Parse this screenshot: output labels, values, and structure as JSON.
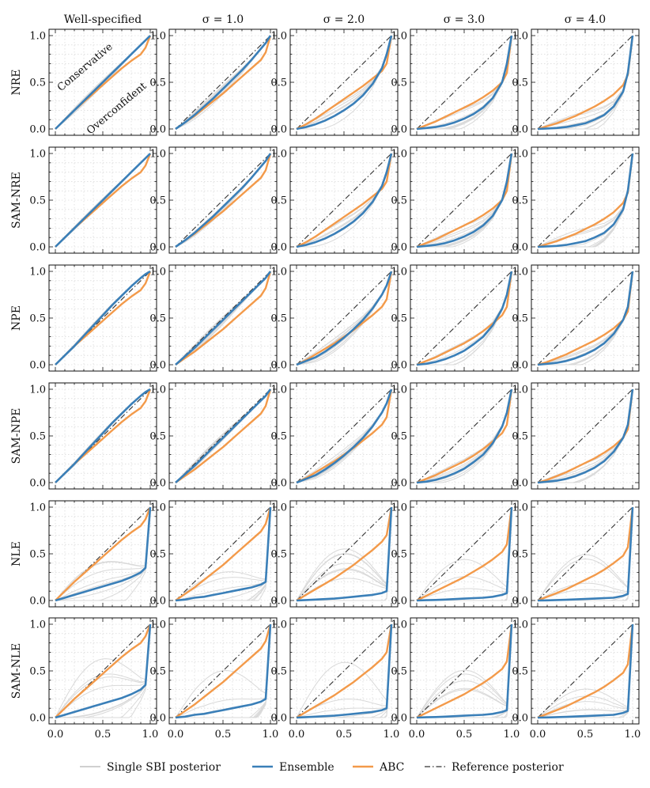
{
  "figure": {
    "col_titles": [
      "Well-specified",
      "σ = 1.0",
      "σ = 2.0",
      "σ = 3.0",
      "σ = 4.0"
    ],
    "row_labels": [
      "NRE",
      "SAM-NRE",
      "NPE",
      "SAM-NPE",
      "NLE",
      "SAM-NLE"
    ],
    "annotations": {
      "upper": "Conservative",
      "lower": "Overconfident"
    },
    "legend": {
      "placement": "bottom-center",
      "items": [
        {
          "label": "Single SBI posterior",
          "color": "#b4b4b4",
          "style": "thin"
        },
        {
          "label": "Ensemble",
          "color": "#3a7fb8",
          "style": "thick"
        },
        {
          "label": "ABC",
          "color": "#f39a4a",
          "style": "thick"
        },
        {
          "label": "Reference posterior",
          "color": "#333333",
          "style": "dashdot"
        }
      ]
    },
    "colors": {
      "ensemble": "#3a7fb8",
      "abc": "#f39a4a",
      "single": "#d9d9d9",
      "reference": "#333333",
      "grid": "#cfcfcf"
    }
  },
  "chart_data": {
    "type": "line",
    "layout": "grid of coverage plots, 6 rows x 5 columns",
    "xlim": [
      0,
      1
    ],
    "ylim": [
      0,
      1
    ],
    "xticks": [
      "0.0",
      "0.5",
      "1.0"
    ],
    "yticks": [
      "0.0",
      "0.5",
      "1.0"
    ],
    "grid": true,
    "x": [
      0,
      0.1,
      0.2,
      0.3,
      0.4,
      0.5,
      0.6,
      0.7,
      0.8,
      0.9,
      0.95,
      1.0
    ],
    "panels": [
      {
        "row": "NRE",
        "col": "Well-specified",
        "ensemble": [
          0,
          0.1,
          0.2,
          0.3,
          0.4,
          0.5,
          0.6,
          0.7,
          0.8,
          0.9,
          0.95,
          1.0
        ],
        "abc": [
          0,
          0.1,
          0.2,
          0.29,
          0.38,
          0.47,
          0.56,
          0.65,
          0.73,
          0.8,
          0.87,
          1.0
        ]
      },
      {
        "row": "NRE",
        "col": "σ = 1.0",
        "ensemble": [
          0,
          0.07,
          0.15,
          0.24,
          0.33,
          0.43,
          0.53,
          0.63,
          0.74,
          0.86,
          0.92,
          1.0
        ],
        "abc": [
          0,
          0.07,
          0.14,
          0.22,
          0.3,
          0.38,
          0.47,
          0.56,
          0.65,
          0.74,
          0.82,
          1.0
        ]
      },
      {
        "row": "NRE",
        "col": "σ = 2.0",
        "ensemble": [
          0,
          0.02,
          0.05,
          0.09,
          0.14,
          0.2,
          0.27,
          0.36,
          0.48,
          0.65,
          0.8,
          1.0
        ],
        "abc": [
          0,
          0.05,
          0.11,
          0.18,
          0.25,
          0.32,
          0.39,
          0.46,
          0.54,
          0.62,
          0.7,
          1.0
        ]
      },
      {
        "row": "NRE",
        "col": "σ = 3.0",
        "ensemble": [
          0,
          0.01,
          0.02,
          0.04,
          0.07,
          0.11,
          0.16,
          0.23,
          0.33,
          0.5,
          0.7,
          1.0
        ],
        "abc": [
          0,
          0.04,
          0.08,
          0.13,
          0.18,
          0.23,
          0.28,
          0.34,
          0.41,
          0.5,
          0.6,
          1.0
        ]
      },
      {
        "row": "NRE",
        "col": "σ = 4.0",
        "ensemble": [
          0,
          0.005,
          0.01,
          0.02,
          0.04,
          0.06,
          0.1,
          0.15,
          0.24,
          0.4,
          0.6,
          1.0
        ],
        "abc": [
          0,
          0.03,
          0.06,
          0.1,
          0.14,
          0.19,
          0.24,
          0.3,
          0.37,
          0.47,
          0.58,
          1.0
        ]
      },
      {
        "row": "SAM-NRE",
        "col": "Well-specified",
        "ensemble": [
          0,
          0.1,
          0.2,
          0.3,
          0.4,
          0.5,
          0.6,
          0.7,
          0.8,
          0.9,
          0.95,
          1.0
        ],
        "abc": [
          0,
          0.1,
          0.2,
          0.29,
          0.38,
          0.47,
          0.56,
          0.65,
          0.73,
          0.8,
          0.87,
          1.0
        ]
      },
      {
        "row": "SAM-NRE",
        "col": "σ = 1.0",
        "ensemble": [
          0,
          0.07,
          0.15,
          0.24,
          0.33,
          0.43,
          0.53,
          0.63,
          0.74,
          0.86,
          0.92,
          1.0
        ],
        "abc": [
          0,
          0.07,
          0.14,
          0.22,
          0.3,
          0.38,
          0.47,
          0.56,
          0.65,
          0.74,
          0.82,
          1.0
        ]
      },
      {
        "row": "SAM-NRE",
        "col": "σ = 2.0",
        "ensemble": [
          0,
          0.02,
          0.05,
          0.09,
          0.14,
          0.2,
          0.27,
          0.36,
          0.48,
          0.65,
          0.8,
          1.0
        ],
        "abc": [
          0,
          0.05,
          0.11,
          0.18,
          0.25,
          0.32,
          0.39,
          0.46,
          0.54,
          0.62,
          0.7,
          1.0
        ]
      },
      {
        "row": "SAM-NRE",
        "col": "σ = 3.0",
        "ensemble": [
          0,
          0.01,
          0.02,
          0.04,
          0.07,
          0.11,
          0.16,
          0.23,
          0.33,
          0.5,
          0.7,
          1.0
        ],
        "abc": [
          0,
          0.04,
          0.08,
          0.13,
          0.18,
          0.23,
          0.28,
          0.34,
          0.41,
          0.5,
          0.6,
          1.0
        ]
      },
      {
        "row": "SAM-NRE",
        "col": "σ = 4.0",
        "ensemble": [
          0,
          0.005,
          0.01,
          0.02,
          0.04,
          0.06,
          0.1,
          0.15,
          0.24,
          0.4,
          0.6,
          1.0
        ],
        "abc": [
          0,
          0.03,
          0.06,
          0.1,
          0.14,
          0.19,
          0.24,
          0.3,
          0.37,
          0.47,
          0.58,
          1.0
        ]
      },
      {
        "row": "NPE",
        "col": "Well-specified",
        "ensemble": [
          0,
          0.1,
          0.2,
          0.31,
          0.42,
          0.53,
          0.64,
          0.74,
          0.84,
          0.93,
          0.97,
          1.0
        ],
        "abc": [
          0,
          0.1,
          0.2,
          0.29,
          0.38,
          0.47,
          0.56,
          0.65,
          0.73,
          0.8,
          0.87,
          1.0
        ]
      },
      {
        "row": "NPE",
        "col": "σ = 1.0",
        "ensemble": [
          0,
          0.09,
          0.18,
          0.28,
          0.38,
          0.48,
          0.58,
          0.68,
          0.78,
          0.88,
          0.93,
          1.0
        ],
        "abc": [
          0,
          0.07,
          0.14,
          0.22,
          0.3,
          0.38,
          0.47,
          0.56,
          0.65,
          0.74,
          0.82,
          1.0
        ]
      },
      {
        "row": "NPE",
        "col": "σ = 2.0",
        "ensemble": [
          0,
          0.04,
          0.08,
          0.14,
          0.21,
          0.29,
          0.38,
          0.48,
          0.6,
          0.75,
          0.85,
          1.0
        ],
        "abc": [
          0,
          0.05,
          0.11,
          0.17,
          0.23,
          0.3,
          0.37,
          0.45,
          0.53,
          0.62,
          0.7,
          1.0
        ]
      },
      {
        "row": "NPE",
        "col": "σ = 3.0",
        "ensemble": [
          0,
          0.01,
          0.03,
          0.06,
          0.1,
          0.15,
          0.22,
          0.3,
          0.42,
          0.6,
          0.75,
          1.0
        ],
        "abc": [
          0,
          0.04,
          0.08,
          0.13,
          0.18,
          0.23,
          0.29,
          0.36,
          0.44,
          0.53,
          0.62,
          1.0
        ]
      },
      {
        "row": "NPE",
        "col": "σ = 4.0",
        "ensemble": [
          0,
          0.01,
          0.02,
          0.04,
          0.07,
          0.11,
          0.16,
          0.23,
          0.33,
          0.48,
          0.62,
          1.0
        ],
        "abc": [
          0,
          0.03,
          0.07,
          0.11,
          0.16,
          0.21,
          0.26,
          0.32,
          0.39,
          0.48,
          0.57,
          1.0
        ]
      },
      {
        "row": "SAM-NPE",
        "col": "Well-specified",
        "ensemble": [
          0,
          0.1,
          0.2,
          0.31,
          0.42,
          0.53,
          0.64,
          0.74,
          0.84,
          0.93,
          0.97,
          1.0
        ],
        "abc": [
          0,
          0.1,
          0.2,
          0.29,
          0.38,
          0.47,
          0.56,
          0.65,
          0.73,
          0.8,
          0.87,
          1.0
        ]
      },
      {
        "row": "SAM-NPE",
        "col": "σ = 1.0",
        "ensemble": [
          0,
          0.09,
          0.18,
          0.28,
          0.38,
          0.48,
          0.58,
          0.68,
          0.78,
          0.88,
          0.93,
          1.0
        ],
        "abc": [
          0,
          0.07,
          0.14,
          0.22,
          0.3,
          0.38,
          0.47,
          0.56,
          0.65,
          0.74,
          0.82,
          1.0
        ]
      },
      {
        "row": "SAM-NPE",
        "col": "σ = 2.0",
        "ensemble": [
          0,
          0.04,
          0.08,
          0.14,
          0.21,
          0.29,
          0.38,
          0.48,
          0.6,
          0.75,
          0.85,
          1.0
        ],
        "abc": [
          0,
          0.05,
          0.11,
          0.17,
          0.23,
          0.3,
          0.37,
          0.45,
          0.53,
          0.62,
          0.7,
          1.0
        ]
      },
      {
        "row": "SAM-NPE",
        "col": "σ = 3.0",
        "ensemble": [
          0,
          0.01,
          0.03,
          0.06,
          0.1,
          0.15,
          0.22,
          0.3,
          0.42,
          0.6,
          0.75,
          1.0
        ],
        "abc": [
          0,
          0.04,
          0.08,
          0.13,
          0.18,
          0.23,
          0.29,
          0.36,
          0.44,
          0.53,
          0.62,
          1.0
        ]
      },
      {
        "row": "SAM-NPE",
        "col": "σ = 4.0",
        "ensemble": [
          0,
          0.01,
          0.02,
          0.04,
          0.07,
          0.11,
          0.16,
          0.23,
          0.33,
          0.48,
          0.62,
          1.0
        ],
        "abc": [
          0,
          0.03,
          0.07,
          0.11,
          0.16,
          0.21,
          0.26,
          0.32,
          0.39,
          0.48,
          0.57,
          1.0
        ]
      },
      {
        "row": "NLE",
        "col": "Well-specified",
        "ensemble": [
          0,
          0.03,
          0.06,
          0.09,
          0.12,
          0.15,
          0.18,
          0.21,
          0.25,
          0.3,
          0.35,
          1.0
        ],
        "abc": [
          0,
          0.1,
          0.2,
          0.29,
          0.38,
          0.47,
          0.56,
          0.65,
          0.73,
          0.8,
          0.87,
          1.0
        ]
      },
      {
        "row": "NLE",
        "col": "σ = 1.0",
        "ensemble": [
          0,
          0.01,
          0.03,
          0.04,
          0.06,
          0.08,
          0.1,
          0.12,
          0.14,
          0.17,
          0.2,
          1.0
        ],
        "abc": [
          0,
          0.07,
          0.14,
          0.22,
          0.3,
          0.38,
          0.47,
          0.56,
          0.65,
          0.74,
          0.82,
          1.0
        ]
      },
      {
        "row": "NLE",
        "col": "σ = 2.0",
        "ensemble": [
          0,
          0.005,
          0.01,
          0.015,
          0.02,
          0.03,
          0.04,
          0.05,
          0.06,
          0.08,
          0.1,
          1.0
        ],
        "abc": [
          0,
          0.06,
          0.12,
          0.18,
          0.24,
          0.31,
          0.38,
          0.46,
          0.54,
          0.63,
          0.7,
          1.0
        ]
      },
      {
        "row": "NLE",
        "col": "σ = 3.0",
        "ensemble": [
          0,
          0.003,
          0.006,
          0.01,
          0.015,
          0.02,
          0.025,
          0.03,
          0.04,
          0.06,
          0.08,
          1.0
        ],
        "abc": [
          0,
          0.05,
          0.1,
          0.15,
          0.2,
          0.25,
          0.31,
          0.37,
          0.44,
          0.52,
          0.6,
          1.0
        ]
      },
      {
        "row": "NLE",
        "col": "σ = 4.0",
        "ensemble": [
          0,
          0.002,
          0.005,
          0.008,
          0.012,
          0.016,
          0.02,
          0.025,
          0.03,
          0.05,
          0.07,
          1.0
        ],
        "abc": [
          0,
          0.04,
          0.08,
          0.12,
          0.17,
          0.22,
          0.27,
          0.33,
          0.4,
          0.48,
          0.57,
          1.0
        ]
      },
      {
        "row": "SAM-NLE",
        "col": "Well-specified",
        "ensemble": [
          0,
          0.03,
          0.06,
          0.09,
          0.12,
          0.15,
          0.18,
          0.21,
          0.25,
          0.3,
          0.35,
          1.0
        ],
        "abc": [
          0,
          0.1,
          0.2,
          0.29,
          0.38,
          0.47,
          0.56,
          0.65,
          0.73,
          0.8,
          0.87,
          1.0
        ]
      },
      {
        "row": "SAM-NLE",
        "col": "σ = 1.0",
        "ensemble": [
          0,
          0.01,
          0.03,
          0.04,
          0.06,
          0.08,
          0.1,
          0.12,
          0.14,
          0.17,
          0.2,
          1.0
        ],
        "abc": [
          0,
          0.07,
          0.14,
          0.22,
          0.3,
          0.38,
          0.47,
          0.56,
          0.65,
          0.74,
          0.82,
          1.0
        ]
      },
      {
        "row": "SAM-NLE",
        "col": "σ = 2.0",
        "ensemble": [
          0,
          0.005,
          0.01,
          0.015,
          0.02,
          0.03,
          0.04,
          0.05,
          0.06,
          0.08,
          0.1,
          1.0
        ],
        "abc": [
          0,
          0.06,
          0.12,
          0.18,
          0.24,
          0.31,
          0.38,
          0.46,
          0.54,
          0.63,
          0.7,
          1.0
        ]
      },
      {
        "row": "SAM-NLE",
        "col": "σ = 3.0",
        "ensemble": [
          0,
          0.003,
          0.006,
          0.01,
          0.015,
          0.02,
          0.025,
          0.03,
          0.04,
          0.06,
          0.08,
          1.0
        ],
        "abc": [
          0,
          0.05,
          0.1,
          0.15,
          0.2,
          0.25,
          0.31,
          0.37,
          0.44,
          0.52,
          0.6,
          1.0
        ]
      },
      {
        "row": "SAM-NLE",
        "col": "σ = 4.0",
        "ensemble": [
          0,
          0.002,
          0.005,
          0.008,
          0.012,
          0.016,
          0.02,
          0.025,
          0.03,
          0.05,
          0.07,
          1.0
        ],
        "abc": [
          0,
          0.04,
          0.08,
          0.12,
          0.17,
          0.22,
          0.27,
          0.33,
          0.4,
          0.48,
          0.57,
          1.0
        ]
      }
    ],
    "single_spread": {
      "Well-specified": [
        0.06,
        0.04,
        0.04,
        0.04,
        0.6,
        0.6
      ],
      "σ = 1.0": [
        0.1,
        0.1,
        0.08,
        0.08,
        0.55,
        0.55
      ],
      "σ = 2.0": [
        0.15,
        0.15,
        0.12,
        0.12,
        0.6,
        0.6
      ],
      "σ = 3.0": [
        0.15,
        0.15,
        0.12,
        0.12,
        0.55,
        0.55
      ],
      "σ = 4.0": [
        0.15,
        0.15,
        0.12,
        0.12,
        0.5,
        0.5
      ]
    }
  }
}
